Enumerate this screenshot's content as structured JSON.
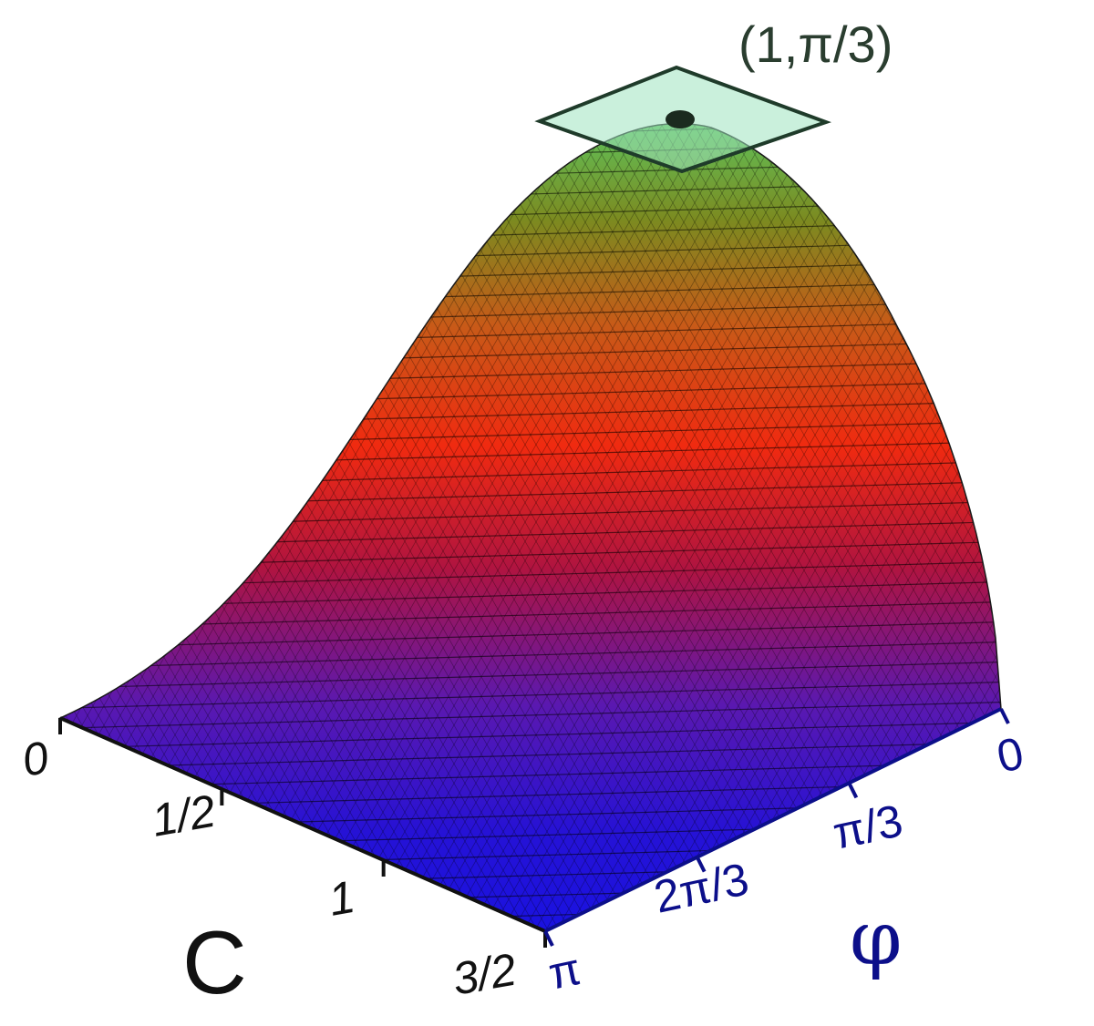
{
  "chart_data": {
    "type": "surface",
    "function_shape": "single smooth peak (bell-like) over C and phi; value vanishes along C = 0 and along phi = pi",
    "x_axis": {
      "symbol": "C",
      "ticks": [
        {
          "value": 0,
          "label": "0"
        },
        {
          "value": 0.5,
          "label": "1/2"
        },
        {
          "value": 1,
          "label": "1"
        },
        {
          "value": 1.5,
          "label": "3/2"
        }
      ],
      "range": [
        0,
        1.5
      ]
    },
    "y_axis": {
      "symbol": "φ",
      "ticks": [
        {
          "value": 0,
          "label": "0"
        },
        {
          "value": 1.0472,
          "label": "π/3"
        },
        {
          "value": 2.0944,
          "label": "2π/3"
        },
        {
          "value": 3.1416,
          "label": "π"
        }
      ],
      "range": [
        0,
        3.1416
      ]
    },
    "z_axis": {
      "shown": false
    },
    "maximum": {
      "C": 1,
      "phi": 1.0472,
      "label": "(1,π/3)",
      "marked_with": "point with translucent tangent plane"
    },
    "colormap": [
      "#1a12e0",
      "#5a18b0",
      "#b01440",
      "#f02a10",
      "#c85a18",
      "#7c8a20",
      "#5fc25a"
    ],
    "colors": {
      "mesh_line": "#000000",
      "tangent_plane_fill": "#9fe3c0",
      "tangent_plane_edge": "#1f3b2a",
      "c_axis_text": "#111111",
      "phi_axis_text": "#0c0f8a",
      "peak_label_text": "#2a3d2f"
    }
  }
}
